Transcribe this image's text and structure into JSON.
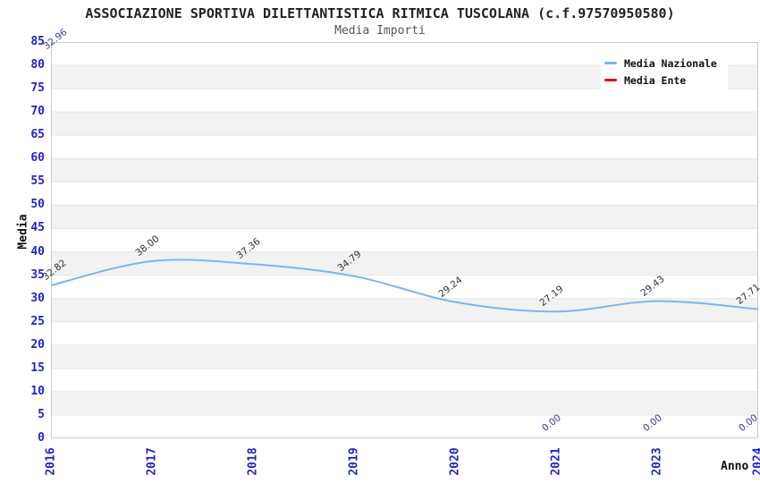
{
  "header": {
    "title": "ASSOCIAZIONE SPORTIVA DILETTANTISTICA RITMICA TUSCOLANA (c.f.97570950580)",
    "subtitle": "Media Importi"
  },
  "legend": {
    "items": [
      {
        "label": "Media Nazionale",
        "color": "#7cb5ec"
      },
      {
        "label": "Media Ente",
        "color": "#e60000"
      }
    ]
  },
  "chart_data": {
    "type": "line",
    "title": "ASSOCIAZIONE SPORTIVA DILETTANTISTICA RITMICA TUSCOLANA (c.f.97570950580)",
    "subtitle": "Media Importi",
    "xlabel": "Anno",
    "ylabel": "Media",
    "ylim": [
      0,
      85
    ],
    "ytick_step": 5,
    "grid": "horizontal-stripes",
    "legend_position": "top-right",
    "categories": [
      "2016",
      "2017",
      "2018",
      "2019",
      "2020",
      "2021",
      "2023",
      "2024"
    ],
    "series": [
      {
        "name": "Media Nazionale",
        "color": "#7cb5ec",
        "line_visible": true,
        "label_color": "#333333",
        "values": [
          32.82,
          38.0,
          37.36,
          34.79,
          29.24,
          27.19,
          29.43,
          27.71
        ],
        "labels": [
          "32.82",
          "38.00",
          "37.36",
          "34.79",
          "29.24",
          "27.19",
          "29.43",
          "27.71"
        ]
      },
      {
        "name": "Media Ente",
        "color": "#e60000",
        "line_visible": false,
        "label_color": "#3b3b9b",
        "first_label_at_plot_corner": true,
        "values": [
          32.96,
          null,
          null,
          null,
          null,
          0,
          0,
          0
        ],
        "labels": [
          "32.96",
          null,
          null,
          null,
          null,
          "0.00",
          "0.00",
          "0.00"
        ]
      }
    ]
  },
  "colors": {
    "axis_label": "#2222cc",
    "stripe": "#f2f2f2",
    "gridline": "#e7e7e7",
    "plot_border": "#cccccc",
    "title": "#222222",
    "subtitle": "#555555"
  }
}
